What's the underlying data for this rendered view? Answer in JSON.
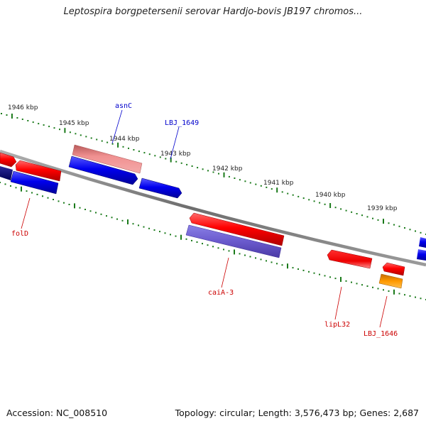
{
  "title": "Leptospira borgpetersenii serovar Hardjo-bovis JB197 chromos...",
  "accession": "Accession: NC_008510",
  "topology": "Topology: circular; Length: 3,576,473 bp; Genes: 2,687",
  "colors": {
    "backbone": "#888888",
    "tick": "#1a7a1a",
    "forward_gene": "#ff0000",
    "reverse_gene": "#0000ee",
    "label_blue": "#0000cc",
    "label_red": "#cc0000"
  },
  "ticks": [
    {
      "label": "1946 kbp"
    },
    {
      "label": "1945 kbp"
    },
    {
      "label": "1944 kbp"
    },
    {
      "label": "1943 kbp"
    },
    {
      "label": "1942 kbp"
    },
    {
      "label": "1941 kbp"
    },
    {
      "label": "1940 kbp"
    },
    {
      "label": "1939 kbp"
    }
  ],
  "gene_labels": [
    {
      "name": "asnC",
      "color": "#0000cc"
    },
    {
      "name": "LBJ_1649",
      "color": "#0000cc"
    },
    {
      "name": "folD",
      "color": "#cc0000"
    },
    {
      "name": "caiA-3",
      "color": "#cc0000"
    },
    {
      "name": "lipL32",
      "color": "#cc0000"
    },
    {
      "name": "LBJ_1646",
      "color": "#cc0000"
    }
  ]
}
